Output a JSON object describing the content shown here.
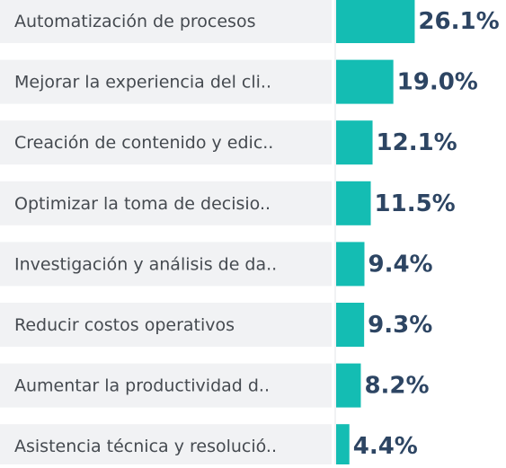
{
  "chart_data": {
    "type": "bar",
    "orientation": "horizontal",
    "categories": [
      "Automatización de procesos",
      "Mejorar la experiencia del cli..",
      "Creación de contenido y edic..",
      "Optimizar la toma de decisio..",
      "Investigación y análisis de da..",
      "Reducir costos operativos",
      "Aumentar la productividad d..",
      "Asistencia técnica y resolució.."
    ],
    "values": [
      26.1,
      19.0,
      12.1,
      11.5,
      9.4,
      9.3,
      8.2,
      4.4
    ],
    "value_labels": [
      "26.1%",
      "19.0%",
      "12.1%",
      "11.5%",
      "9.4%",
      "9.3%",
      "8.2%",
      "4.4%"
    ],
    "color": "#14bdb3"
  }
}
